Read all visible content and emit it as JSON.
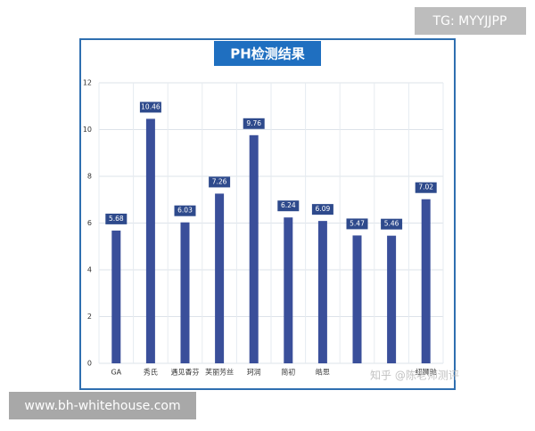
{
  "chart_data": {
    "type": "bar",
    "title": "PH检测结果",
    "categories": [
      "GA",
      "秀氏",
      "遇见香芬",
      "芙丽芳丝",
      "珂润",
      "简初",
      "皓思",
      null,
      null,
      "纽狮驰"
    ],
    "values": [
      5.68,
      10.46,
      6.03,
      7.26,
      9.76,
      6.24,
      6.09,
      5.47,
      5.46,
      7.02
    ],
    "color": "#3a4f9a",
    "ylim": [
      0,
      12
    ],
    "yticks": [
      0,
      2,
      4,
      6,
      8,
      10,
      12
    ],
    "grid": true
  },
  "overlays": {
    "channel": "TG: MYYJJPP",
    "site": "www.bh-whitehouse.com",
    "watermark": "知乎 @陈老师测评"
  }
}
